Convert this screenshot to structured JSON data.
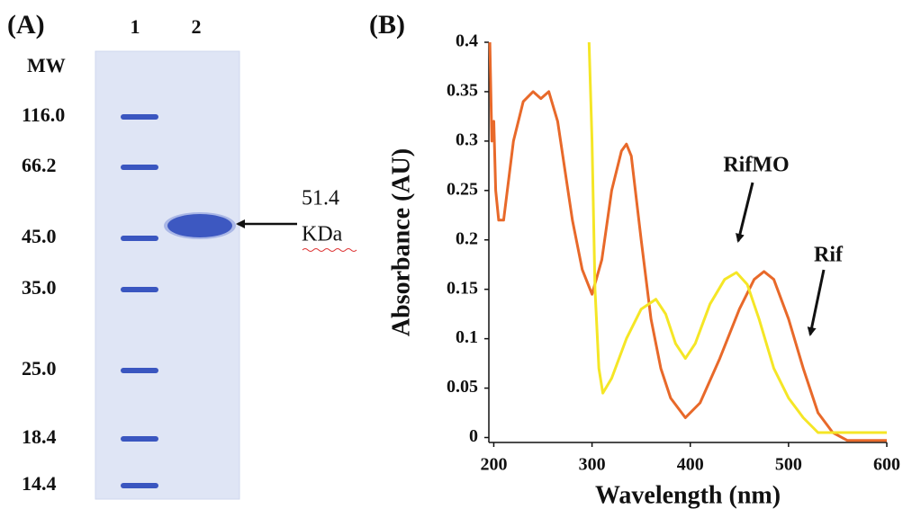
{
  "panel_a": {
    "label": "(A)",
    "lanes": [
      "1",
      "2"
    ],
    "mw_header": "MW",
    "markers": [
      "116.0",
      "66.2",
      "45.0",
      "35.0",
      "25.0",
      "18.4",
      "14.4"
    ],
    "band_size": "51.4",
    "band_unit": "KDa"
  },
  "panel_b": {
    "label": "(B)"
  },
  "chart_data": {
    "type": "line",
    "x_label": "Wavelength (nm)",
    "y_label": "Absorbance (AU)",
    "xlim": [
      195,
      600
    ],
    "xticks": [
      200,
      300,
      400,
      500,
      600
    ],
    "ylim": [
      -0.005,
      0.4
    ],
    "yticks": [
      0,
      0.05,
      0.1,
      0.15,
      0.2,
      0.25,
      0.3,
      0.35,
      0.4
    ],
    "series": [
      {
        "name": "Rif",
        "color": "#e8692a",
        "x": [
          196,
          198,
          200,
          202,
          205,
          210,
          220,
          230,
          240,
          248,
          256,
          265,
          280,
          290,
          300,
          310,
          320,
          330,
          335,
          340,
          350,
          360,
          370,
          380,
          395,
          410,
          430,
          450,
          465,
          475,
          485,
          500,
          515,
          530,
          545,
          560,
          600
        ],
        "values": [
          0.4,
          0.3,
          0.32,
          0.25,
          0.22,
          0.22,
          0.3,
          0.34,
          0.35,
          0.343,
          0.35,
          0.32,
          0.22,
          0.17,
          0.145,
          0.18,
          0.25,
          0.29,
          0.297,
          0.285,
          0.2,
          0.12,
          0.07,
          0.04,
          0.02,
          0.035,
          0.08,
          0.13,
          0.16,
          0.168,
          0.16,
          0.12,
          0.07,
          0.025,
          0.005,
          -0.003,
          -0.003
        ]
      },
      {
        "name": "RifMO",
        "color": "#f5e626",
        "x": [
          297,
          300,
          303,
          307,
          311,
          320,
          335,
          350,
          365,
          375,
          385,
          395,
          405,
          420,
          435,
          447,
          458,
          470,
          485,
          500,
          515,
          530,
          600
        ],
        "values": [
          0.4,
          0.3,
          0.15,
          0.07,
          0.045,
          0.06,
          0.1,
          0.13,
          0.14,
          0.125,
          0.095,
          0.08,
          0.095,
          0.135,
          0.16,
          0.167,
          0.155,
          0.12,
          0.07,
          0.04,
          0.02,
          0.005,
          0.005
        ]
      }
    ]
  }
}
